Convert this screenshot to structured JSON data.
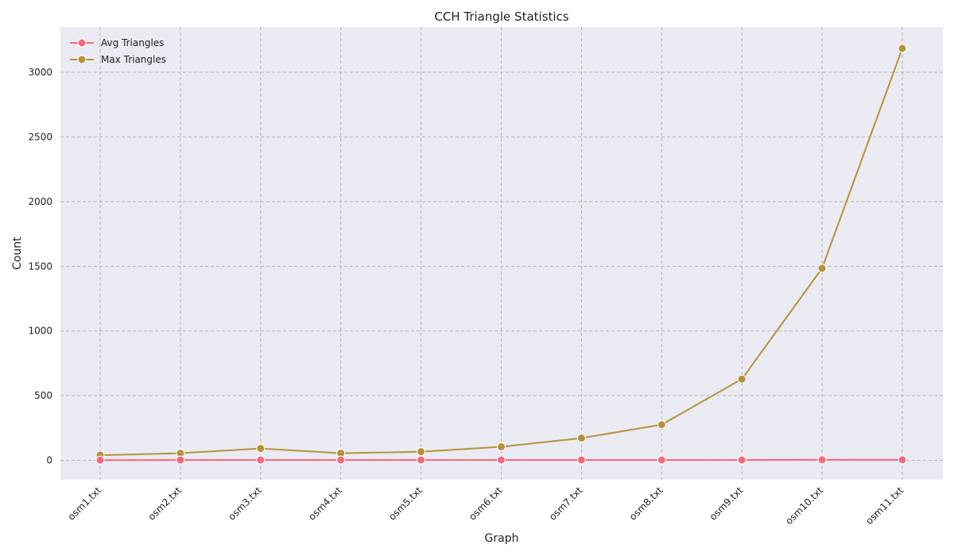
{
  "chart_data": {
    "type": "line",
    "title": "CCH Triangle Statistics",
    "xlabel": "Graph",
    "ylabel": "Count",
    "categories": [
      "osm1.txt",
      "osm2.txt",
      "osm3.txt",
      "osm4.txt",
      "osm5.txt",
      "osm6.txt",
      "osm7.txt",
      "osm8.txt",
      "osm9.txt",
      "osm10.txt",
      "osm11.txt"
    ],
    "series": [
      {
        "name": "Avg Triangles",
        "color": "#f0697e",
        "values": [
          2,
          3,
          3,
          3,
          3,
          3,
          3,
          3,
          3,
          4,
          4
        ]
      },
      {
        "name": "Max Triangles",
        "color": "#b5923a",
        "values": [
          40,
          55,
          92,
          55,
          67,
          105,
          172,
          276,
          628,
          1485,
          3185
        ]
      }
    ],
    "ylim": [
      -150,
      3350
    ],
    "yticks": [
      0,
      500,
      1000,
      1500,
      2000,
      2500,
      3000
    ],
    "grid": true,
    "legend": "top-left",
    "background": "#eaeaf2",
    "grid_color": "#b0b0b0"
  }
}
